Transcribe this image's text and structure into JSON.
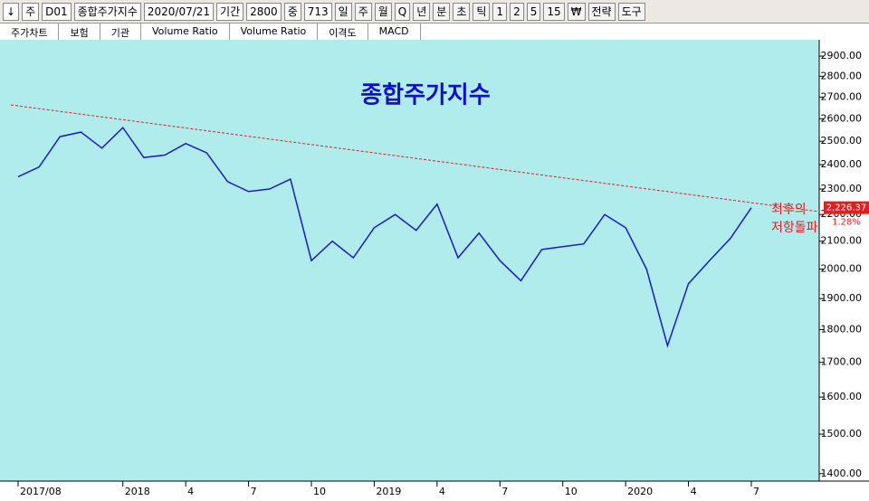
{
  "toolbar": {
    "items": [
      "↓",
      "주",
      "D01",
      "종합주가지수",
      "2020/07/21",
      "기간",
      "2800",
      "중",
      "713"
    ],
    "buttons": [
      "일",
      "주",
      "월",
      "Q",
      "년",
      "분",
      "초",
      "틱",
      "1",
      "2",
      "5",
      "15",
      "₩",
      "전략",
      "도구"
    ]
  },
  "tabs": [
    "주가차트",
    "보험",
    "기관",
    "Volume Ratio",
    "Volume Ratio",
    "이격도",
    "MACD"
  ],
  "chart_data": {
    "type": "line",
    "title": "종합주가지수",
    "categories": [
      "2017/08",
      null,
      null,
      null,
      null,
      "2018",
      null,
      null,
      "4",
      null,
      null,
      "7",
      null,
      null,
      "10",
      null,
      null,
      "2019",
      null,
      null,
      "4",
      null,
      null,
      "7",
      null,
      null,
      "10",
      null,
      null,
      "2020",
      null,
      null,
      "4",
      null,
      null,
      "7"
    ],
    "series": [
      {
        "name": "종합주가지수",
        "color": "#1a1acc",
        "values": [
          2350,
          2390,
          2520,
          2540,
          2470,
          2560,
          2430,
          2440,
          2490,
          2450,
          2330,
          2290,
          2300,
          2340,
          2030,
          2100,
          2040,
          2150,
          2200,
          2140,
          2240,
          2040,
          2130,
          2030,
          1960,
          2070,
          2080,
          2090,
          2200,
          2150,
          2000,
          1750,
          1950,
          2030,
          2110,
          2226.37
        ]
      }
    ],
    "log_scale": true,
    "ylim": [
      1382,
      2979
    ],
    "yticks": [
      {
        "value": 1400,
        "label": "1400.00"
      },
      {
        "value": 1500,
        "label": "1500.00"
      },
      {
        "value": 1600,
        "label": "1600.00"
      },
      {
        "value": 1700,
        "label": "1700.00"
      },
      {
        "value": 1800,
        "label": "1800.00"
      },
      {
        "value": 1900,
        "label": "1900.00"
      },
      {
        "value": 2000,
        "label": "2000.00"
      },
      {
        "value": 2100,
        "label": "2100.00"
      },
      {
        "value": 2200,
        "label": "2200.00"
      },
      {
        "value": 2300,
        "label": "2300.00"
      },
      {
        "value": 2400,
        "label": "2400.00"
      },
      {
        "value": 2500,
        "label": "2500.00"
      },
      {
        "value": 2600,
        "label": "2600.00"
      },
      {
        "value": 2700,
        "label": "2700.00"
      },
      {
        "value": 2800,
        "label": "2800.00"
      },
      {
        "value": 2900,
        "label": "2900.00"
      }
    ],
    "price_tag": {
      "value": 2226.37,
      "label": "2,226.37"
    },
    "change_label": "1.28%",
    "annotations": [
      "최후의",
      "저항돌파"
    ]
  }
}
